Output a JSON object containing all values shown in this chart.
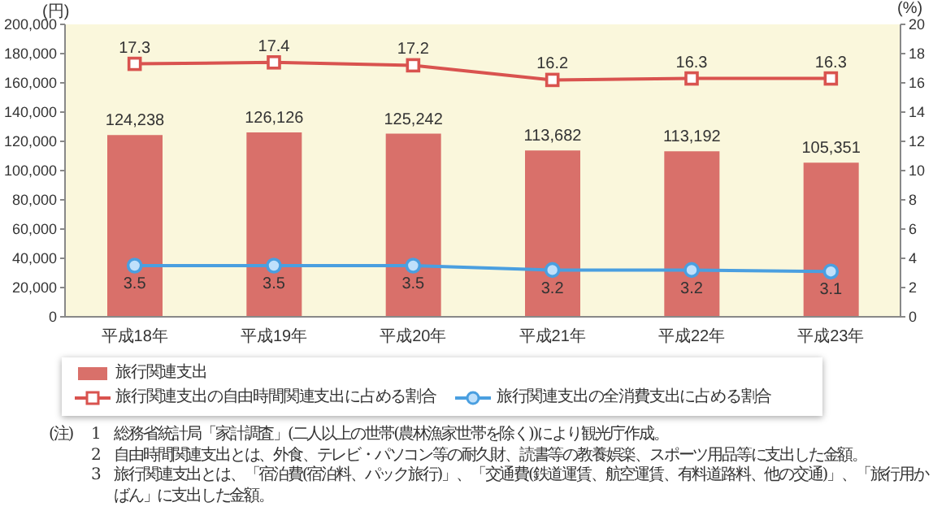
{
  "chart_data": {
    "type": "bar",
    "ylabel": "(円)",
    "y2label": "(%)",
    "categories": [
      "平成18年",
      "平成19年",
      "平成20年",
      "平成21年",
      "平成22年",
      "平成23年"
    ],
    "series": [
      {
        "name": "旅行関連支出",
        "color": "#d9706a",
        "values": [
          124238,
          126126,
          125242,
          113682,
          113192,
          105351
        ],
        "value_labels": [
          "124,238",
          "126,126",
          "125,242",
          "113,682",
          "113,192",
          "105,351"
        ]
      },
      {
        "name": "旅行関連支出の自由時間関連支出に占める割合",
        "type": "line",
        "axis": "y2",
        "marker": "square",
        "color": "#d9534f",
        "values": [
          17.3,
          17.4,
          17.2,
          16.2,
          16.3,
          16.3
        ]
      },
      {
        "name": "旅行関連支出の全消費支出に占める割合",
        "type": "line",
        "axis": "y2",
        "marker": "circle",
        "color": "#4a9fe0",
        "values": [
          3.5,
          3.5,
          3.5,
          3.2,
          3.2,
          3.1
        ]
      }
    ],
    "ylim": [
      0,
      200000
    ],
    "yticks": [
      0,
      {
        "value": 20000,
        "label": "20,000"
      },
      {
        "value": 40000,
        "label": "40,000"
      },
      {
        "value": 60000,
        "label": "60,000"
      },
      {
        "value": 80000,
        "label": "80,000"
      },
      {
        "value": 100000,
        "label": "100,000"
      },
      {
        "value": 120000,
        "label": "120,000"
      },
      {
        "value": 140000,
        "label": "140,000"
      },
      {
        "value": 160000,
        "label": "160,000"
      },
      {
        "value": 180000,
        "label": "180,000"
      },
      {
        "value": 200000,
        "label": "200,000"
      }
    ],
    "y2lim": [
      0,
      20
    ],
    "y2ticks": [
      0,
      2,
      4,
      6,
      8,
      10,
      12,
      14,
      16,
      18,
      20
    ],
    "legend": "bottom",
    "data_labels": true,
    "annotations": [
      "(注)",
      "1　総務省統計局「家計調査」(二人以上の世帯(農林漁家世帯を除く))により観光庁作成。",
      "2　自由時間関連支出とは、外食、テレビ・パソコン等の耐久財、読書等の教養娯楽、スポーツ用品等に支出した金額。",
      "3　旅行関連支出とは、「宿泊費(宿泊料、パック旅行)」、「交通費(鉄道運賃、航空運賃、有料道路料、他の交通)」、「旅行用かばん」に支出した金額。"
    ]
  }
}
